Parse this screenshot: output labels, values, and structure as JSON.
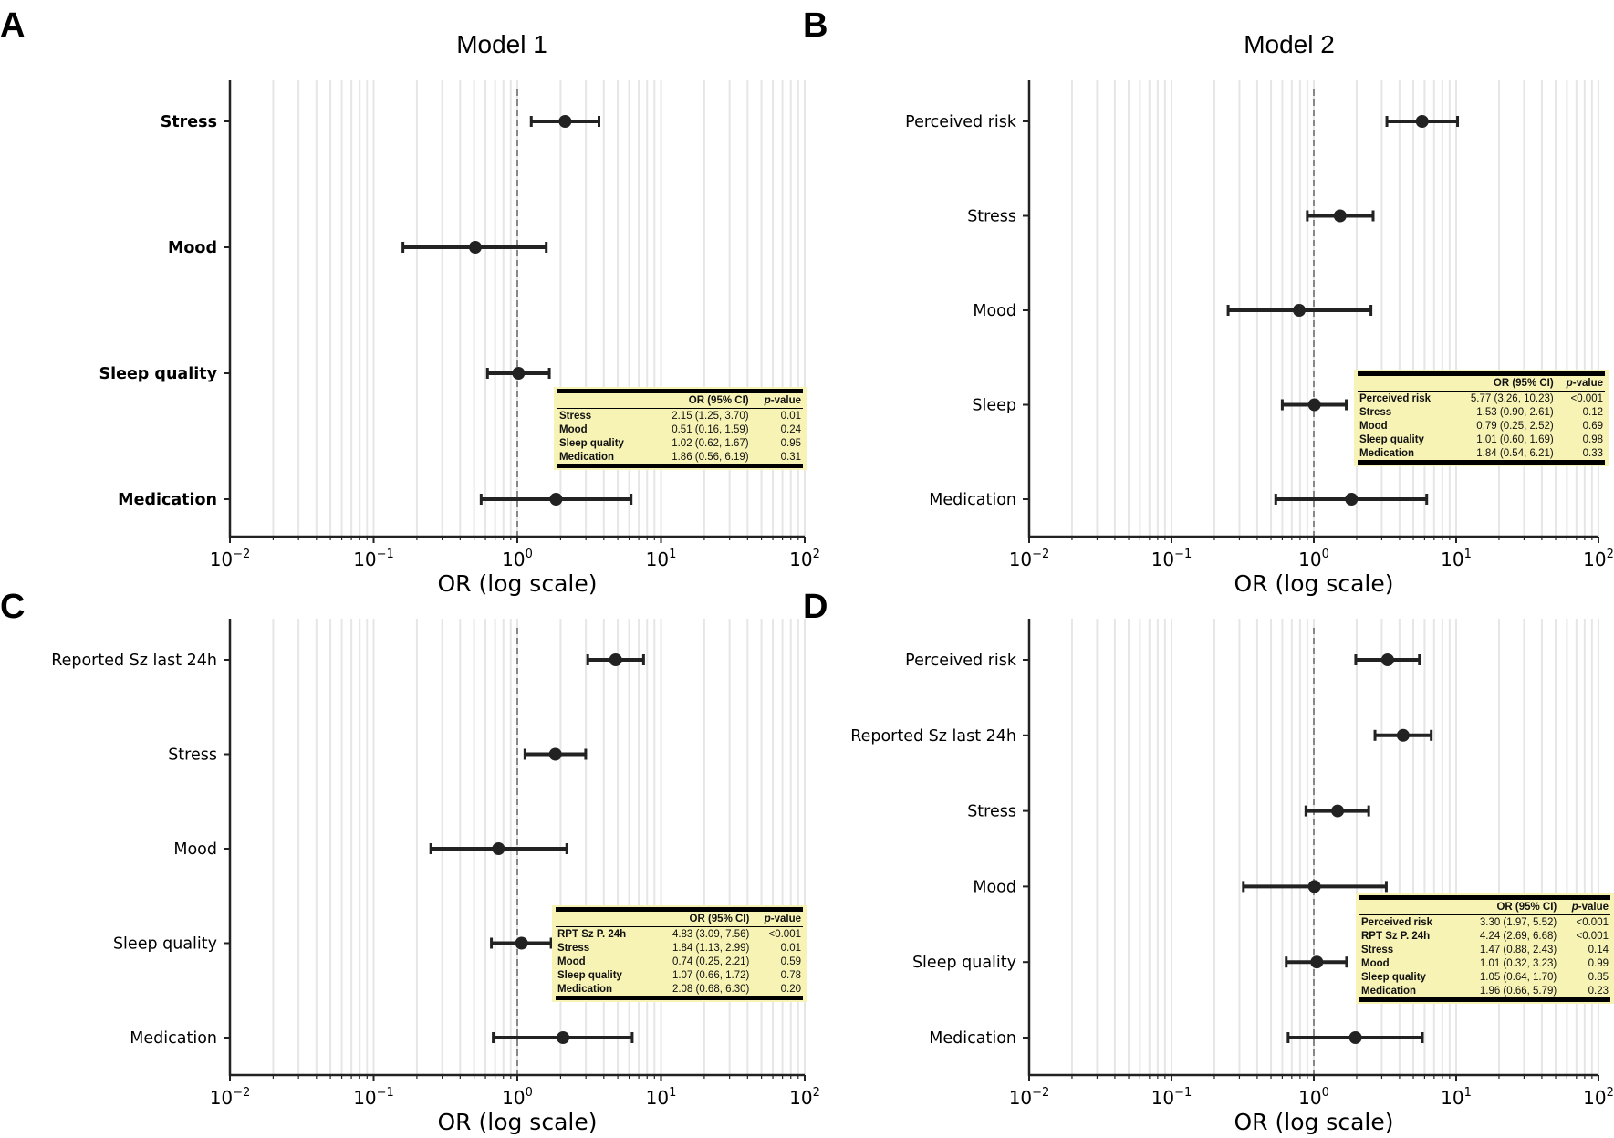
{
  "panel_letters": [
    "A",
    "B",
    "C",
    "D"
  ],
  "chart_data": [
    {
      "type": "forest",
      "panel": "A",
      "title": "Model 1",
      "xlabel": "OR (log scale)",
      "xscale": "log",
      "xlim": [
        0.01,
        100
      ],
      "xticks": [
        "10^-2",
        "10^-1",
        "10^0",
        "10^1",
        "10^2"
      ],
      "reference_line": 1,
      "grid": "vertical minor log gridlines",
      "categories": [
        "Stress",
        "Mood",
        "Sleep quality",
        "Medication"
      ],
      "or": [
        2.15,
        0.51,
        1.02,
        1.86
      ],
      "ci_low": [
        1.25,
        0.16,
        0.62,
        0.56
      ],
      "ci_high": [
        3.7,
        1.59,
        1.67,
        6.19
      ],
      "table": {
        "header": [
          "",
          "OR (95% CI)",
          "p",
          "-value"
        ],
        "rows": [
          [
            "Stress",
            "2.15 (1.25, 3.70)",
            "0.01"
          ],
          [
            "Mood",
            "0.51 (0.16, 1.59)",
            "0.24"
          ],
          [
            "Sleep quality",
            "1.02 (0.62, 1.67)",
            "0.95"
          ],
          [
            "Medication",
            "1.86 (0.56, 6.19)",
            "0.31"
          ]
        ]
      }
    },
    {
      "type": "forest",
      "panel": "B",
      "title": "Model 2",
      "xlabel": "OR (log scale)",
      "xscale": "log",
      "xlim": [
        0.01,
        100
      ],
      "xticks": [
        "10^-2",
        "10^-1",
        "10^0",
        "10^1",
        "10^2"
      ],
      "reference_line": 1,
      "categories": [
        "Perceived risk",
        "Stress",
        "Mood",
        "Sleep",
        "Medication"
      ],
      "or": [
        5.77,
        1.53,
        0.79,
        1.01,
        1.84
      ],
      "ci_low": [
        3.26,
        0.9,
        0.25,
        0.6,
        0.54
      ],
      "ci_high": [
        10.23,
        2.61,
        2.52,
        1.69,
        6.21
      ],
      "table": {
        "header": [
          "",
          "OR (95% CI)",
          "p",
          "-value"
        ],
        "rows": [
          [
            "Perceived risk",
            "5.77 (3.26, 10.23)",
            "<0.001"
          ],
          [
            "Stress",
            "1.53 (0.90, 2.61)",
            "0.12"
          ],
          [
            "Mood",
            "0.79 (0.25, 2.52)",
            "0.69"
          ],
          [
            "Sleep quality",
            "1.01 (0.60, 1.69)",
            "0.98"
          ],
          [
            "Medication",
            "1.84 (0.54, 6.21)",
            "0.33"
          ]
        ]
      }
    },
    {
      "type": "forest",
      "panel": "C",
      "title": "",
      "xlabel": "OR (log scale)",
      "xscale": "log",
      "xlim": [
        0.01,
        100
      ],
      "xticks": [
        "10^-2",
        "10^-1",
        "10^0",
        "10^1",
        "10^2"
      ],
      "reference_line": 1,
      "categories": [
        "Reported Sz last 24h",
        "Stress",
        "Mood",
        "Sleep quality",
        "Medication"
      ],
      "or": [
        4.83,
        1.84,
        0.74,
        1.07,
        2.08
      ],
      "ci_low": [
        3.09,
        1.13,
        0.25,
        0.66,
        0.68
      ],
      "ci_high": [
        7.56,
        2.99,
        2.21,
        1.72,
        6.3
      ],
      "table": {
        "header": [
          "",
          "OR (95% CI)",
          "p",
          "-value"
        ],
        "rows": [
          [
            "RPT Sz P. 24h",
            "4.83 (3.09, 7.56)",
            "<0.001"
          ],
          [
            "Stress",
            "1.84 (1.13, 2.99)",
            "0.01"
          ],
          [
            "Mood",
            "0.74 (0.25, 2.21)",
            "0.59"
          ],
          [
            "Sleep quality",
            "1.07 (0.66, 1.72)",
            "0.78"
          ],
          [
            "Medication",
            "2.08 (0.68, 6.30)",
            "0.20"
          ]
        ]
      }
    },
    {
      "type": "forest",
      "panel": "D",
      "title": "",
      "xlabel": "OR (log scale)",
      "xscale": "log",
      "xlim": [
        0.01,
        100
      ],
      "xticks": [
        "10^-2",
        "10^-1",
        "10^0",
        "10^1",
        "10^2"
      ],
      "reference_line": 1,
      "categories": [
        "Perceived risk",
        "Reported Sz last 24h",
        "Stress",
        "Mood",
        "Sleep quality",
        "Medication"
      ],
      "or": [
        3.3,
        4.24,
        1.47,
        1.01,
        1.05,
        1.96
      ],
      "ci_low": [
        1.97,
        2.69,
        0.88,
        0.32,
        0.64,
        0.66
      ],
      "ci_high": [
        5.52,
        6.68,
        2.43,
        3.23,
        1.7,
        5.79
      ],
      "table": {
        "header": [
          "",
          "OR (95% CI)",
          "p",
          "-value"
        ],
        "rows": [
          [
            "Perceived risk",
            "3.30 (1.97, 5.52)",
            "<0.001"
          ],
          [
            "RPT Sz P. 24h",
            "4.24 (2.69, 6.68)",
            "<0.001"
          ],
          [
            "Stress",
            "1.47 (0.88, 2.43)",
            "0.14"
          ],
          [
            "Mood",
            "1.01 (0.32, 3.23)",
            "0.99"
          ],
          [
            "Sleep quality",
            "1.05 (0.64, 1.70)",
            "0.85"
          ],
          [
            "Medication",
            "1.96 (0.66, 5.79)",
            "0.23"
          ]
        ]
      }
    }
  ],
  "colors": {
    "marker": "#222222",
    "grid": "#e6e6e6",
    "table_bg": "#f7f3b4",
    "ref_line": "#555555"
  }
}
